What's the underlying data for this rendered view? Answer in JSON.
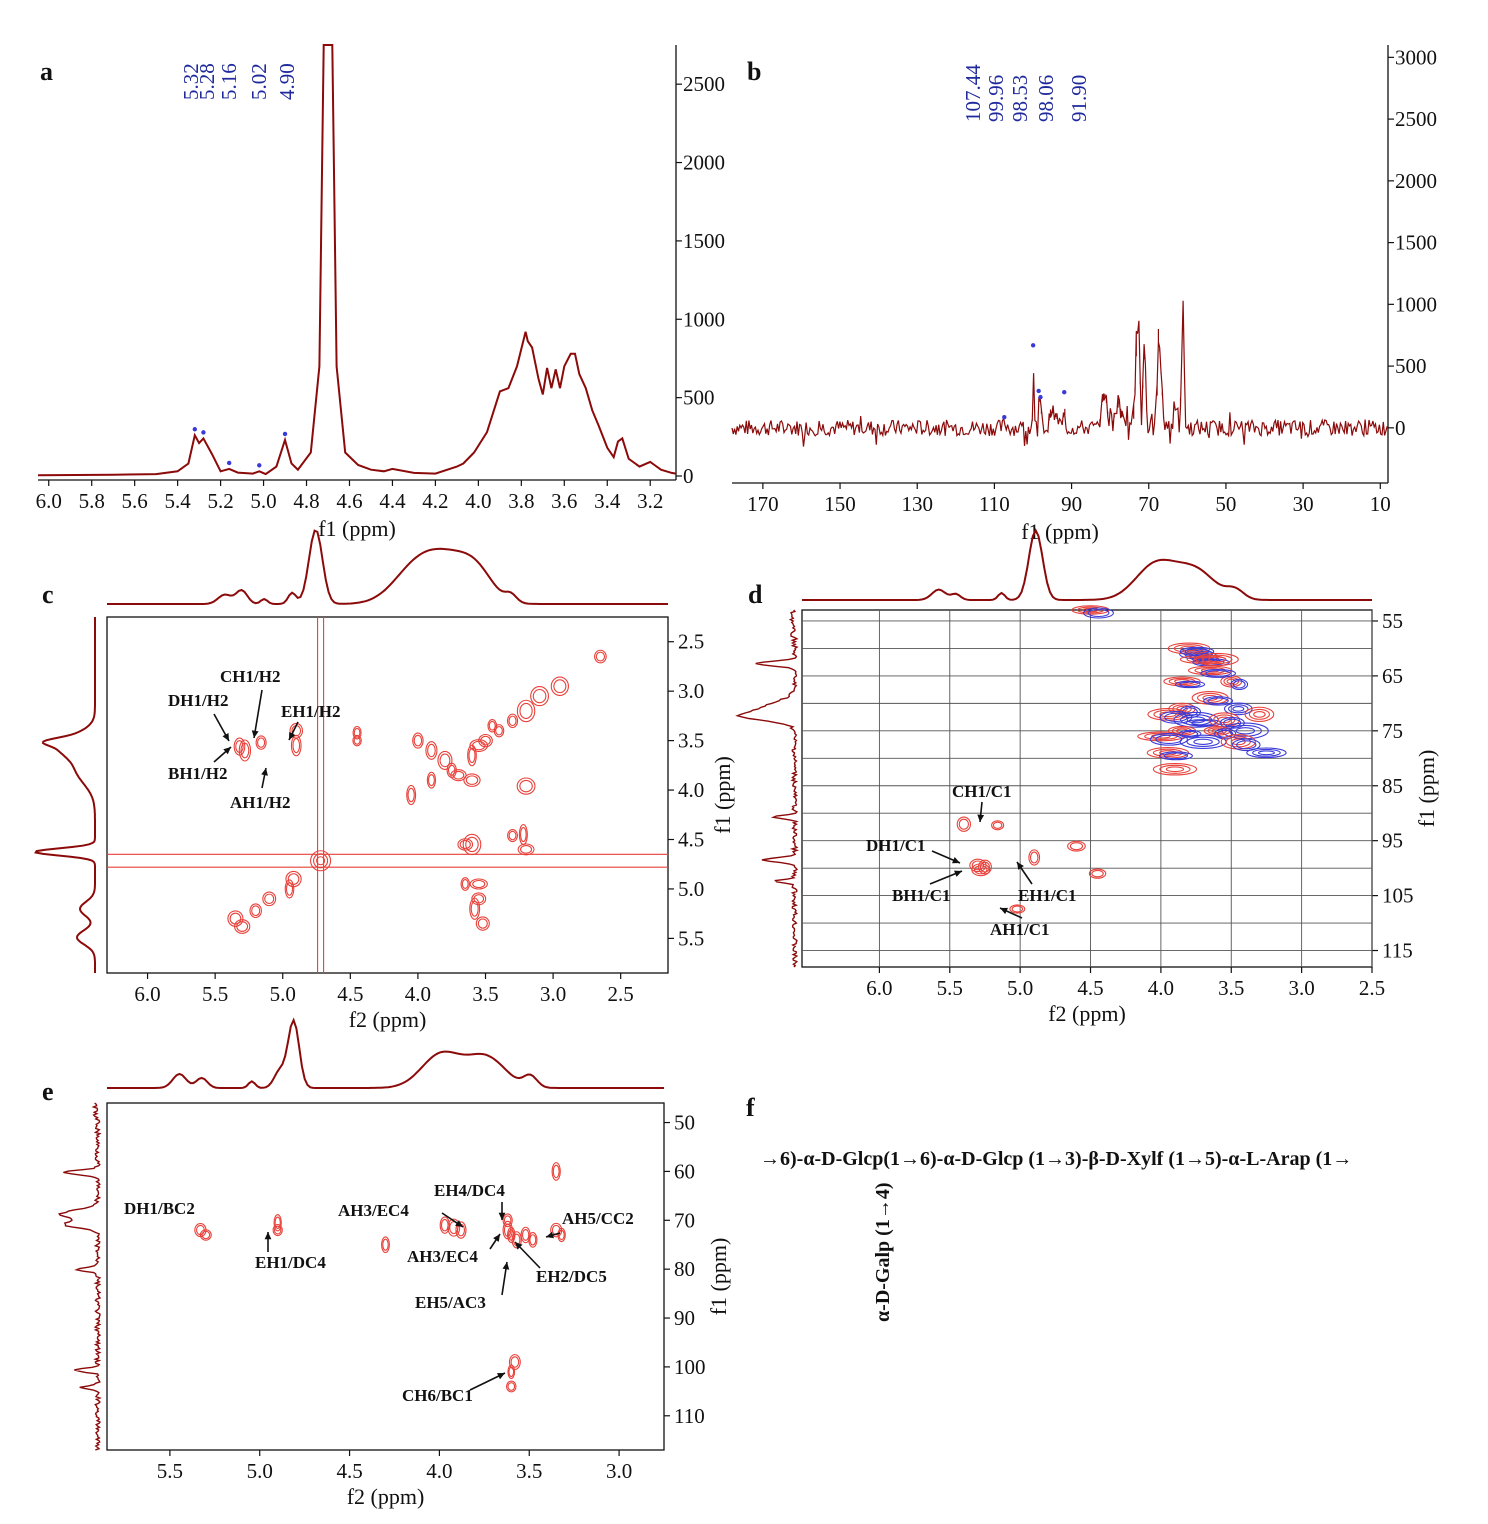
{
  "colors": {
    "spectrum": "#8b0a0a",
    "contour_positive": "#e8413a",
    "contour_negative": "#3a3ad8",
    "peak_label": "#1f2a9c",
    "text": "#111111"
  },
  "structure_text": {
    "main_chain": "→6)-α-D-Glcp(1→6)-α-D-Glcp (1→3)-β-D-Xylf (1→5)-α-L-Arap (1→",
    "branch": "α-D-Galp (1→4)"
  },
  "chart_data": [
    {
      "panel": "a",
      "type": "line",
      "title": "",
      "xlabel": "f1 (ppm)",
      "ylabel": "",
      "xlim": [
        6.05,
        3.08
      ],
      "ylim": [
        0,
        2750
      ],
      "x_ticks": [
        "6.0",
        "5.8",
        "5.6",
        "5.4",
        "5.2",
        "5.0",
        "4.8",
        "4.6",
        "4.4",
        "4.2",
        "4.0",
        "3.8",
        "3.6",
        "3.4",
        "3.2"
      ],
      "x_tick_values": [
        6.0,
        5.8,
        5.6,
        5.4,
        5.2,
        5.0,
        4.8,
        4.6,
        4.4,
        4.2,
        4.0,
        3.8,
        3.6,
        3.4,
        3.2
      ],
      "y_ticks": [
        "0",
        "500",
        "1000",
        "1500",
        "2000",
        "2500"
      ],
      "y_tick_values": [
        0,
        500,
        1000,
        1500,
        2000,
        2500
      ],
      "peak_labels": [
        "5.32",
        "5.28",
        "5.16",
        "5.02",
        "4.90"
      ],
      "peak_label_values": [
        5.32,
        5.28,
        5.16,
        5.02,
        4.9
      ],
      "series": [
        {
          "name": "1H NMR",
          "x": [
            6.05,
            5.7,
            5.5,
            5.4,
            5.35,
            5.32,
            5.3,
            5.28,
            5.24,
            5.2,
            5.16,
            5.12,
            5.05,
            5.02,
            4.99,
            4.94,
            4.9,
            4.87,
            4.84,
            4.78,
            4.74,
            4.72,
            4.7,
            4.68,
            4.66,
            4.62,
            4.56,
            4.5,
            4.44,
            4.4,
            4.3,
            4.2,
            4.1,
            4.07,
            4.02,
            3.96,
            3.9,
            3.86,
            3.82,
            3.78,
            3.77,
            3.75,
            3.72,
            3.7,
            3.68,
            3.66,
            3.64,
            3.62,
            3.6,
            3.57,
            3.55,
            3.53,
            3.5,
            3.47,
            3.44,
            3.4,
            3.37,
            3.35,
            3.33,
            3.3,
            3.25,
            3.2,
            3.18,
            3.15,
            3.1,
            3.08
          ],
          "y": [
            5,
            8,
            12,
            30,
            80,
            260,
            210,
            240,
            140,
            30,
            45,
            22,
            15,
            30,
            12,
            60,
            230,
            80,
            40,
            150,
            700,
            2800,
            2800,
            2800,
            700,
            150,
            70,
            40,
            30,
            45,
            20,
            15,
            60,
            80,
            150,
            280,
            540,
            560,
            700,
            920,
            860,
            820,
            620,
            520,
            690,
            560,
            680,
            560,
            700,
            780,
            780,
            650,
            560,
            420,
            320,
            180,
            120,
            220,
            240,
            110,
            60,
            90,
            70,
            40,
            20,
            15
          ]
        }
      ]
    },
    {
      "panel": "b",
      "type": "line",
      "title": "",
      "xlabel": "f1 (ppm)",
      "ylabel": "",
      "xlim": [
        178,
        8
      ],
      "ylim": [
        -220,
        3100
      ],
      "x_ticks": [
        "170",
        "150",
        "130",
        "110",
        "90",
        "70",
        "50",
        "30",
        "10"
      ],
      "x_tick_values": [
        170,
        150,
        130,
        110,
        90,
        70,
        50,
        30,
        10
      ],
      "y_ticks": [
        "0",
        "500",
        "1000",
        "1500",
        "2000",
        "2500",
        "3000"
      ],
      "y_tick_values": [
        0,
        500,
        1000,
        1500,
        2000,
        2500,
        3000
      ],
      "peak_labels": [
        "107.44",
        "99.96",
        "98.53",
        "98.06",
        "91.90"
      ],
      "peak_label_values": [
        107.44,
        99.96,
        98.53,
        98.06,
        91.9
      ],
      "series": [
        {
          "name": "13C NMR",
          "x": [
            178,
            108,
            107.4,
            106,
            100.2,
            99.96,
            99.6,
            98.6,
            98.53,
            98.06,
            97.5,
            96,
            95.5,
            92.2,
            91.9,
            91.5,
            83,
            81.5,
            80,
            77.5,
            76.5,
            74,
            73,
            72.5,
            72,
            71,
            70.5,
            69,
            68,
            67.5,
            66,
            64,
            62,
            61.2,
            61,
            60.5,
            59,
            56,
            8
          ],
          "y": [
            0,
            0,
            40,
            0,
            0,
            620,
            0,
            0,
            250,
            200,
            0,
            0,
            150,
            0,
            240,
            0,
            0,
            310,
            0,
            200,
            0,
            0,
            750,
            820,
            0,
            700,
            0,
            0,
            0,
            800,
            0,
            0,
            0,
            860,
            900,
            0,
            0,
            0,
            0
          ]
        }
      ]
    },
    {
      "panel": "c",
      "type": "heatmap",
      "title": "",
      "xlabel": "f2 (ppm)",
      "ylabel": "f1 (ppm)",
      "xlim": [
        6.3,
        2.15
      ],
      "ylim": [
        2.25,
        5.85
      ],
      "x_ticks": [
        "6.0",
        "5.5",
        "5.0",
        "4.5",
        "4.0",
        "3.5",
        "3.0",
        "2.5"
      ],
      "x_tick_values": [
        6.0,
        5.5,
        5.0,
        4.5,
        4.0,
        3.5,
        3.0,
        2.5
      ],
      "y_ticks": [
        "2.5",
        "3.0",
        "3.5",
        "4.0",
        "4.5",
        "5.0",
        "5.5"
      ],
      "y_tick_values": [
        2.5,
        3.0,
        3.5,
        4.0,
        4.5,
        5.0,
        5.5
      ],
      "annotations": [
        "CH1/H2",
        "DH1/H2",
        "EH1/H2",
        "BH1/H2",
        "AH1/H2"
      ],
      "annotation_points": [
        [
          5.16,
          3.52
        ],
        [
          5.32,
          3.56
        ],
        [
          4.9,
          3.55
        ],
        [
          5.28,
          3.6
        ],
        [
          5.02,
          3.82
        ]
      ],
      "cross_peaks": [
        [
          5.32,
          3.56
        ],
        [
          5.28,
          3.6
        ],
        [
          5.16,
          3.52
        ],
        [
          4.9,
          3.55
        ],
        [
          4.9,
          3.4
        ],
        [
          4.45,
          3.42
        ],
        [
          4.45,
          3.5
        ],
        [
          3.2,
          3.96
        ],
        [
          2.65,
          2.65
        ],
        [
          4.0,
          3.5
        ],
        [
          3.9,
          3.6
        ],
        [
          3.8,
          3.7
        ],
        [
          3.75,
          3.8
        ],
        [
          3.7,
          3.85
        ],
        [
          3.6,
          3.65
        ],
        [
          3.55,
          3.55
        ],
        [
          3.5,
          3.5
        ],
        [
          3.45,
          3.35
        ],
        [
          3.4,
          3.4
        ],
        [
          3.3,
          3.3
        ],
        [
          3.2,
          3.2
        ],
        [
          3.1,
          3.05
        ],
        [
          2.95,
          2.95
        ],
        [
          3.9,
          3.9
        ],
        [
          3.6,
          3.9
        ],
        [
          4.05,
          4.05
        ],
        [
          3.65,
          4.55
        ],
        [
          3.6,
          4.55
        ],
        [
          3.22,
          4.45
        ],
        [
          3.3,
          4.46
        ],
        [
          3.2,
          4.6
        ],
        [
          3.65,
          4.95
        ],
        [
          3.55,
          4.95
        ],
        [
          3.55,
          5.1
        ],
        [
          3.52,
          5.35
        ],
        [
          3.58,
          5.2
        ],
        [
          5.35,
          5.3
        ],
        [
          5.3,
          5.38
        ],
        [
          5.2,
          5.22
        ],
        [
          5.1,
          5.1
        ],
        [
          4.95,
          5.0
        ],
        [
          4.92,
          4.9
        ]
      ]
    },
    {
      "panel": "d",
      "type": "heatmap",
      "title": "",
      "xlabel": "f2 (ppm)",
      "ylabel": "f1 (ppm)",
      "xlim": [
        6.55,
        2.5
      ],
      "ylim": [
        53,
        118
      ],
      "x_ticks": [
        "6.0",
        "5.5",
        "5.0",
        "4.5",
        "4.0",
        "3.5",
        "3.0",
        "2.5"
      ],
      "x_tick_values": [
        6.0,
        5.5,
        5.0,
        4.5,
        4.0,
        3.5,
        3.0,
        2.5
      ],
      "y_ticks": [
        "55",
        "65",
        "75",
        "85",
        "95",
        "105",
        "115"
      ],
      "y_tick_values": [
        55,
        65,
        75,
        85,
        95,
        105,
        115
      ],
      "annotations": [
        "CH1/C1",
        "DH1/C1",
        "BH1/C1",
        "EH1/C1",
        "AH1/C1"
      ],
      "annotation_points": [
        [
          5.16,
          92.2
        ],
        [
          5.3,
          99.5
        ],
        [
          5.28,
          99.96
        ],
        [
          4.9,
          98.06
        ],
        [
          5.02,
          107.44
        ]
      ],
      "cross_peaks": [
        [
          5.4,
          92
        ],
        [
          5.16,
          92.2
        ],
        [
          5.3,
          99.5
        ],
        [
          5.25,
          99.8
        ],
        [
          5.28,
          100.3
        ],
        [
          4.9,
          98.06
        ],
        [
          4.6,
          96
        ],
        [
          4.45,
          101
        ],
        [
          5.02,
          107.44
        ],
        [
          4.5,
          53
        ],
        [
          3.75,
          61
        ],
        [
          3.7,
          62
        ],
        [
          3.8,
          60
        ],
        [
          3.6,
          62
        ],
        [
          3.85,
          66
        ],
        [
          3.5,
          66
        ],
        [
          3.65,
          69
        ],
        [
          3.85,
          71
        ],
        [
          3.45,
          71
        ],
        [
          3.3,
          72
        ],
        [
          3.95,
          72
        ],
        [
          3.75,
          73
        ],
        [
          3.55,
          73
        ],
        [
          3.4,
          75
        ],
        [
          3.85,
          75
        ],
        [
          3.6,
          75
        ],
        [
          4.0,
          76
        ],
        [
          3.7,
          77
        ],
        [
          3.45,
          77
        ],
        [
          3.95,
          79
        ],
        [
          3.25,
          79
        ],
        [
          3.9,
          82
        ],
        [
          3.65,
          64
        ]
      ]
    },
    {
      "panel": "e",
      "type": "heatmap",
      "title": "",
      "xlabel": "f2 (ppm)",
      "ylabel": "f1 (ppm)",
      "xlim": [
        5.85,
        2.75
      ],
      "ylim": [
        46,
        117
      ],
      "x_ticks": [
        "5.5",
        "5.0",
        "4.5",
        "4.0",
        "3.5",
        "3.0"
      ],
      "x_tick_values": [
        5.5,
        5.0,
        4.5,
        4.0,
        3.5,
        3.0
      ],
      "y_ticks": [
        "50",
        "60",
        "70",
        "80",
        "90",
        "100",
        "110"
      ],
      "y_tick_values": [
        50,
        60,
        70,
        80,
        90,
        100,
        110
      ],
      "annotations": [
        "DH1/BC2",
        "EH1/DC4",
        "AH3/EC4",
        "EH4/DC4",
        "AH5/CC2",
        "AH3/EC4",
        "EH2/DC5",
        "EH5/AC3",
        "CH6/BC1"
      ],
      "annotation_points": [
        [
          5.33,
          72
        ],
        [
          4.9,
          71.5
        ],
        [
          3.95,
          71.5
        ],
        [
          3.62,
          71.5
        ],
        [
          3.33,
          72.5
        ],
        [
          3.62,
          74
        ],
        [
          3.55,
          73.5
        ],
        [
          3.6,
          76
        ],
        [
          3.6,
          99
        ]
      ],
      "cross_peaks": [
        [
          5.33,
          72
        ],
        [
          5.3,
          73
        ],
        [
          4.9,
          70.5
        ],
        [
          4.9,
          72
        ],
        [
          4.3,
          75
        ],
        [
          3.97,
          71
        ],
        [
          3.92,
          71.5
        ],
        [
          3.88,
          72
        ],
        [
          3.62,
          70
        ],
        [
          3.62,
          72
        ],
        [
          3.6,
          73
        ],
        [
          3.57,
          74
        ],
        [
          3.52,
          73
        ],
        [
          3.48,
          74
        ],
        [
          3.35,
          72
        ],
        [
          3.32,
          73
        ],
        [
          3.35,
          60
        ],
        [
          3.58,
          99
        ],
        [
          3.6,
          101
        ],
        [
          3.6,
          104
        ]
      ]
    }
  ]
}
